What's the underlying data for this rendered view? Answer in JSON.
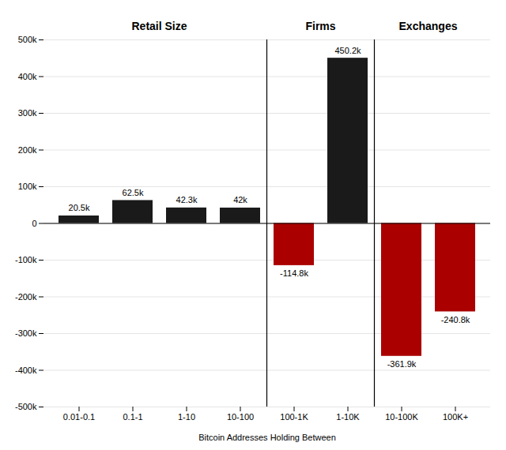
{
  "chart_data": {
    "type": "bar",
    "xlabel": "Bitcoin Addresses Holding Between",
    "categories": [
      "0.01-0.1",
      "0.1-1",
      "1-10",
      "10-100",
      "100-1K",
      "1-10K",
      "10-100K",
      "100K+"
    ],
    "values": [
      20500,
      62500,
      42300,
      42000,
      -114800,
      450200,
      -361900,
      -240800
    ],
    "value_labels": [
      "20.5k",
      "62.5k",
      "42.3k",
      "42k",
      "-114.8k",
      "450.2k",
      "-361.9k",
      "-240.8k"
    ],
    "colors": [
      "#1a1a1a",
      "#1a1a1a",
      "#1a1a1a",
      "#1a1a1a",
      "#aa0000",
      "#1a1a1a",
      "#aa0000",
      "#aa0000"
    ],
    "data_labels": true,
    "ylim": [
      -500000,
      500000
    ],
    "yticks": [
      {
        "value": -500000,
        "label": "-500k"
      },
      {
        "value": -400000,
        "label": "-400k"
      },
      {
        "value": -300000,
        "label": "-300k"
      },
      {
        "value": -200000,
        "label": "-200k"
      },
      {
        "value": -100000,
        "label": "-100k"
      },
      0,
      {
        "value": 100000,
        "label": "100k"
      },
      {
        "value": 200000,
        "label": "200k"
      },
      {
        "value": 300000,
        "label": "300k"
      },
      {
        "value": 400000,
        "label": "400k"
      },
      {
        "value": 500000,
        "label": "500k"
      }
    ],
    "grid": true,
    "annotations": [
      {
        "text": "Retail Size",
        "from": "0.01-0.1",
        "to": "10-100"
      },
      {
        "text": "Firms",
        "from": "100-1K",
        "to": "1-10K"
      },
      {
        "text": "Exchanges",
        "from": "10-100K",
        "to": "100K+"
      }
    ]
  }
}
